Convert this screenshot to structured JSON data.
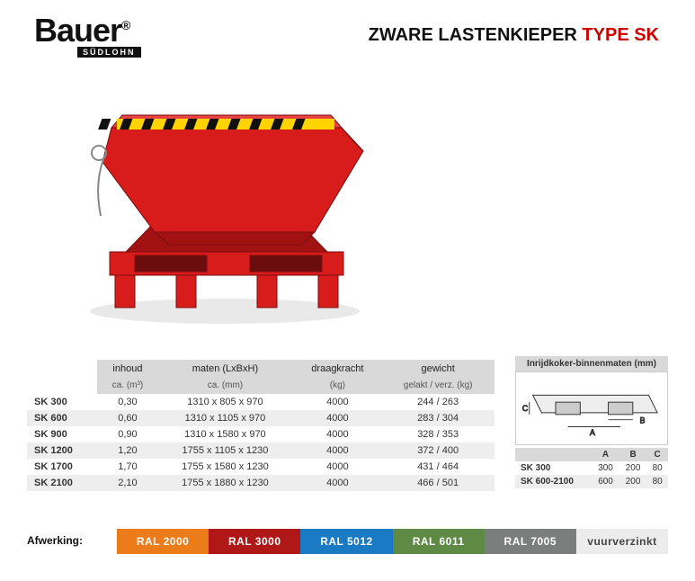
{
  "brand": {
    "name": "Bauer",
    "reg": "®",
    "sub": "SÜDLOHN"
  },
  "title": {
    "line1": "ZWARE LASTENKIEPER",
    "type_label": "TYPE SK"
  },
  "colors": {
    "accent_red": "#cc0a0a",
    "table_header_bg": "#d9d9d9",
    "table_alt_bg": "#eeeeee"
  },
  "table": {
    "headers": [
      {
        "label": "inhoud",
        "sub": "ca. (m³)"
      },
      {
        "label": "maten (LxBxH)",
        "sub": "ca. (mm)"
      },
      {
        "label": "draagkracht",
        "sub": "(kg)"
      },
      {
        "label": "gewicht",
        "sub": "gelakt / verz. (kg)"
      }
    ],
    "rows": [
      {
        "model": "SK 300",
        "inhoud": "0,30",
        "maten": "1310 x  805 x  970",
        "draag": "4000",
        "gewicht": "244 / 263"
      },
      {
        "model": "SK 600",
        "inhoud": "0,60",
        "maten": "1310 x 1105 x  970",
        "draag": "4000",
        "gewicht": "283 / 304"
      },
      {
        "model": "SK 900",
        "inhoud": "0,90",
        "maten": "1310 x 1580 x  970",
        "draag": "4000",
        "gewicht": "328 / 353"
      },
      {
        "model": "SK 1200",
        "inhoud": "1,20",
        "maten": "1755 x 1105 x 1230",
        "draag": "4000",
        "gewicht": "372 / 400"
      },
      {
        "model": "SK 1700",
        "inhoud": "1,70",
        "maten": "1755 x 1580 x 1230",
        "draag": "4000",
        "gewicht": "431 / 464"
      },
      {
        "model": "SK 2100",
        "inhoud": "2,10",
        "maten": "1755 x 1880 x 1230",
        "draag": "4000",
        "gewicht": "466 / 501"
      }
    ]
  },
  "inlet": {
    "title": "Inrijdkoker-binnenmaten (mm)",
    "cols": [
      "A",
      "B",
      "C"
    ],
    "rows": [
      {
        "model": "SK 300",
        "a": "300",
        "b": "200",
        "c": "80"
      },
      {
        "model": "SK 600-2100",
        "a": "600",
        "b": "200",
        "c": "80"
      }
    ]
  },
  "afwerking": {
    "label": "Afwerking:",
    "swatches": [
      {
        "label": "RAL 2000",
        "bg": "#ec7b1a",
        "fg": "#ffffff"
      },
      {
        "label": "RAL 3000",
        "bg": "#b01717",
        "fg": "#ffffff"
      },
      {
        "label": "RAL 5012",
        "bg": "#1a7bc4",
        "fg": "#ffffff"
      },
      {
        "label": "RAL 6011",
        "bg": "#5f8a46",
        "fg": "#ffffff"
      },
      {
        "label": "RAL 7005",
        "bg": "#7a7f7d",
        "fg": "#ffffff"
      },
      {
        "label": "vuurverzinkt",
        "bg": "#ececec",
        "fg": "#444444"
      }
    ]
  },
  "product_svg_colors": {
    "body": "#d81b1b",
    "body_dark": "#a31212",
    "stripe_y": "#ffd400",
    "stripe_k": "#111111",
    "floor_shadow": "#e9e9e9"
  }
}
